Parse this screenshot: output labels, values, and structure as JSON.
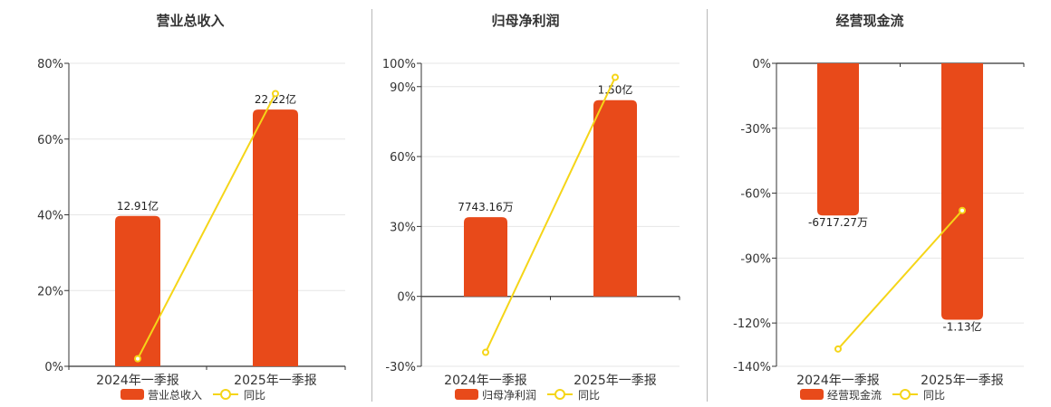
{
  "colors": {
    "bar": "#e84a1a",
    "line": "#f5d518",
    "axis": "#333333",
    "grid": "#e6e6e6",
    "text": "#333333"
  },
  "chart_data": [
    {
      "type": "bar",
      "title": "营业总收入",
      "categories": [
        "2024年一季报",
        "2025年一季报"
      ],
      "series": [
        {
          "name": "营业总收入",
          "kind": "bar",
          "values": [
            39.7,
            67.8
          ],
          "labels": [
            "12.91亿",
            "22.22亿"
          ]
        },
        {
          "name": "同比",
          "kind": "line",
          "values": [
            2,
            72
          ]
        }
      ],
      "ylim": [
        0,
        80
      ],
      "yticks": [
        0,
        20,
        40,
        60,
        80
      ],
      "ytick_labels": [
        "0%",
        "20%",
        "40%",
        "60%",
        "80%"
      ],
      "grid": true,
      "legend": "bottom-center"
    },
    {
      "type": "bar",
      "title": "归母净利润",
      "categories": [
        "2024年一季报",
        "2025年一季报"
      ],
      "series": [
        {
          "name": "归母净利润",
          "kind": "bar",
          "values": [
            34.0,
            84.2
          ],
          "labels": [
            "7743.16万",
            "1.50亿"
          ]
        },
        {
          "name": "同比",
          "kind": "line",
          "values": [
            -24,
            94
          ]
        }
      ],
      "ylim": [
        -30,
        100
      ],
      "yticks": [
        -30,
        0,
        30,
        60,
        90,
        100
      ],
      "ytick_labels": [
        "-30%",
        "0%",
        "30%",
        "60%",
        "90%",
        "100%"
      ],
      "grid": true,
      "legend": "bottom-center"
    },
    {
      "type": "bar",
      "title": "经营现金流",
      "categories": [
        "2024年一季报",
        "2025年一季报"
      ],
      "series": [
        {
          "name": "经营现金流",
          "kind": "bar",
          "values": [
            -70.3,
            -118.5
          ],
          "labels": [
            "-6717.27万",
            "-1.13亿"
          ]
        },
        {
          "name": "同比",
          "kind": "line",
          "values": [
            -132,
            -68
          ]
        }
      ],
      "ylim": [
        -140,
        0
      ],
      "yticks": [
        -140,
        -120,
        -90,
        -60,
        -30,
        0
      ],
      "ytick_labels": [
        "-140%",
        "-120%",
        "-90%",
        "-60%",
        "-30%",
        "0%"
      ],
      "grid": true,
      "legend": "bottom-center"
    }
  ]
}
